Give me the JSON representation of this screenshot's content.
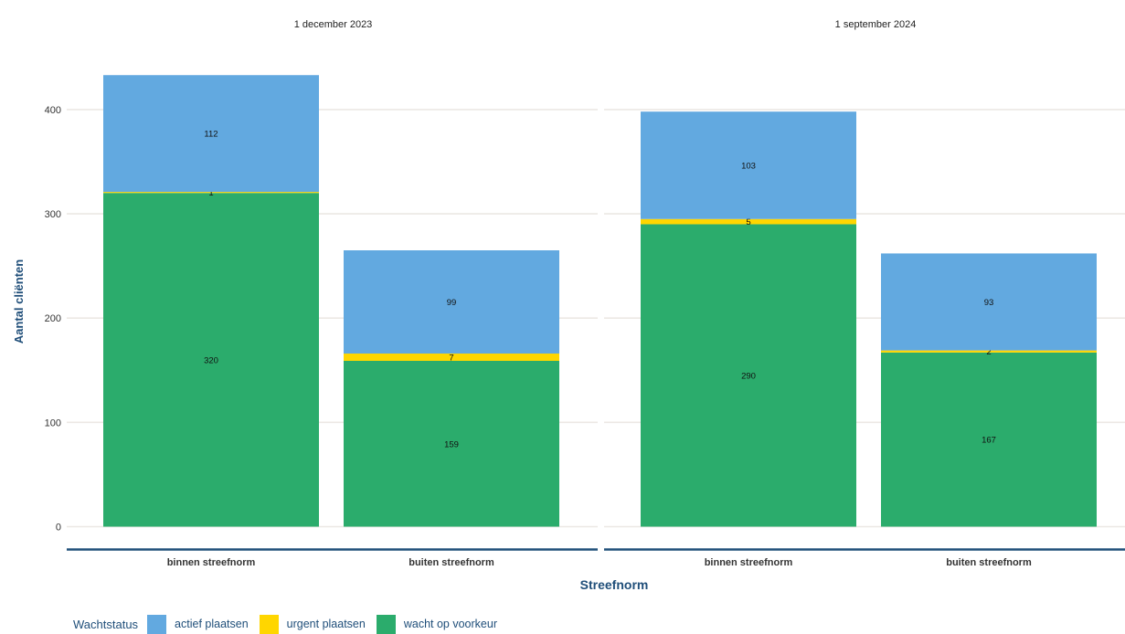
{
  "chart_data": {
    "type": "bar",
    "stacked": true,
    "xlabel": "Streefnorm",
    "ylabel": "Aantal cliënten",
    "ylim": [
      0,
      435
    ],
    "yticks": [
      0,
      100,
      200,
      300,
      400
    ],
    "categories": [
      "binnen streefnorm",
      "buiten streefnorm"
    ],
    "legend": {
      "title": "Wachtstatus",
      "position": "bottom-left",
      "items": [
        {
          "key": "actief",
          "label": "actief plaatsen"
        },
        {
          "key": "urgent",
          "label": "urgent plaatsen"
        },
        {
          "key": "wacht",
          "label": "wacht op voorkeur"
        }
      ]
    },
    "colors": {
      "actief": "#62a9e0",
      "urgent": "#ffd600",
      "wacht": "#2bac6c"
    },
    "panels": [
      {
        "title": "1 december 2023",
        "series": [
          {
            "key": "wacht",
            "name": "wacht op voorkeur",
            "values": [
              320,
              159
            ]
          },
          {
            "key": "urgent",
            "name": "urgent plaatsen",
            "values": [
              1,
              7
            ]
          },
          {
            "key": "actief",
            "name": "actief plaatsen",
            "values": [
              112,
              99
            ]
          }
        ]
      },
      {
        "title": "1 september 2024",
        "series": [
          {
            "key": "wacht",
            "name": "wacht op voorkeur",
            "values": [
              290,
              167
            ]
          },
          {
            "key": "urgent",
            "name": "urgent plaatsen",
            "values": [
              5,
              2
            ]
          },
          {
            "key": "actief",
            "name": "actief plaatsen",
            "values": [
              103,
              93
            ]
          }
        ]
      }
    ]
  }
}
